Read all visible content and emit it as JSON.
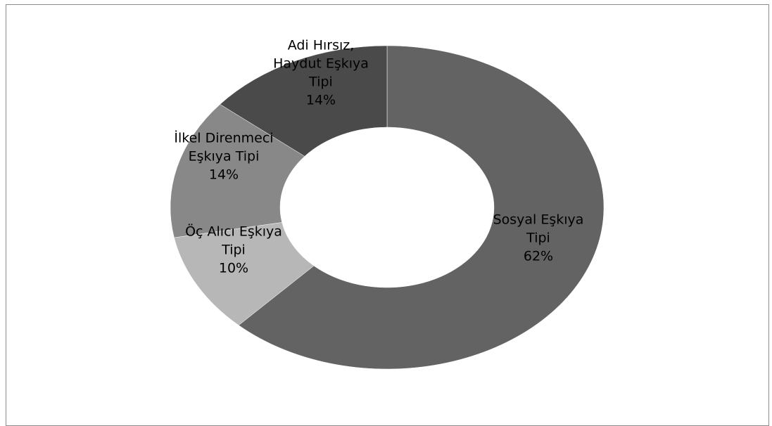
{
  "chart_data": {
    "type": "pie",
    "variant": "doughnut",
    "title": "",
    "legend": "none",
    "slices": [
      {
        "label_lines": [
          "Sosyal Eşkıya",
          "Tipi"
        ],
        "percent_label": "62%",
        "value": 62,
        "color": "#636363"
      },
      {
        "label_lines": [
          "Öç Alıcı Eşkıya",
          "Tipi"
        ],
        "percent_label": "10%",
        "value": 10,
        "color": "#b7b7b7"
      },
      {
        "label_lines": [
          "İlkel Direnmeci",
          "Eşkıya Tipi"
        ],
        "percent_label": "14%",
        "value": 14,
        "color": "#888888"
      },
      {
        "label_lines": [
          "Adi Hırsız,",
          "Haydut Eşkıya",
          "Tipi"
        ],
        "percent_label": "14%",
        "value": 14,
        "color": "#4a4a4a"
      }
    ]
  }
}
